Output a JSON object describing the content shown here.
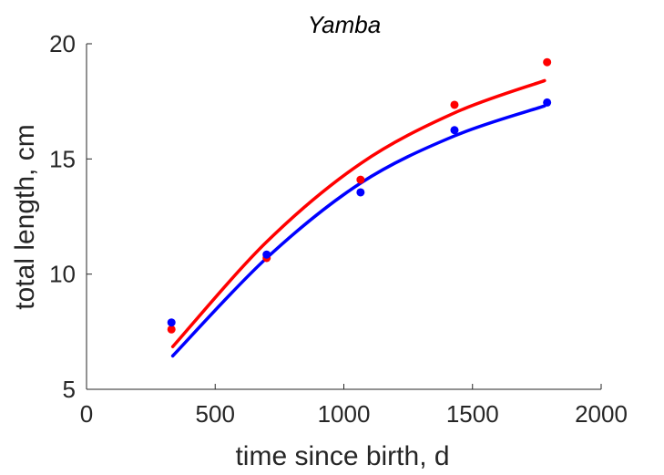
{
  "chart_data": {
    "type": "scatter",
    "title": "Yamba",
    "xlabel": "time since birth, d",
    "ylabel": "total length, cm",
    "xlim": [
      0,
      2000
    ],
    "ylim": [
      5,
      20
    ],
    "xticks": [
      0,
      500,
      1000,
      1500,
      2000
    ],
    "yticks": [
      5,
      10,
      15,
      20
    ],
    "grid": false,
    "legend": "none",
    "series": [
      {
        "color": "#ff0000",
        "points": {
          "x": [
            330,
            700,
            1065,
            1430,
            1790
          ],
          "y": [
            7.6,
            10.7,
            14.1,
            17.35,
            19.2
          ]
        },
        "fit": {
          "x": [
            335,
            700,
            1065,
            1430,
            1780
          ],
          "y": [
            6.85,
            11.4,
            14.8,
            17.0,
            18.4
          ]
        }
      },
      {
        "color": "#0000ff",
        "points": {
          "x": [
            330,
            700,
            1065,
            1430,
            1790
          ],
          "y": [
            7.9,
            10.85,
            13.55,
            16.25,
            17.45
          ]
        },
        "fit": {
          "x": [
            335,
            700,
            1065,
            1430,
            1780
          ],
          "y": [
            6.45,
            10.7,
            13.95,
            16.0,
            17.3
          ]
        }
      }
    ]
  }
}
